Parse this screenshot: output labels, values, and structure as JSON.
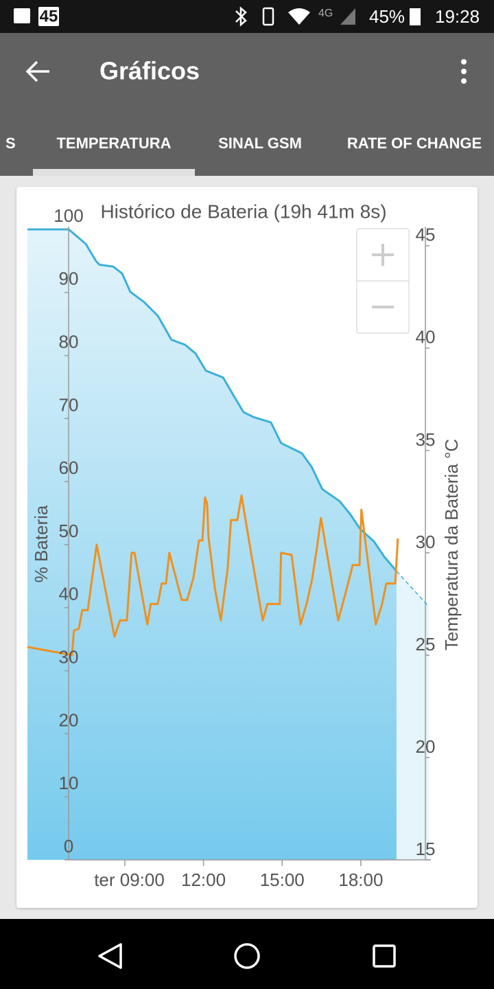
{
  "status_bar": {
    "notification": "45",
    "network": "4G",
    "battery": "45%",
    "time": "19:28"
  },
  "app_bar": {
    "title": "Gráficos"
  },
  "tabs": {
    "items": [
      "S",
      "TEMPERATURA",
      "SINAL GSM",
      "RATE OF CHANGE"
    ],
    "selected": 1
  },
  "chart_data": {
    "type": "line",
    "title": "Histórico de Bateria (19h 41m 8s)",
    "ylabel": "% Bateria",
    "y2label": "Temperatura da Bateria °C",
    "xlim": [
      5.29,
      20.67
    ],
    "xticks": [
      {
        "value": 9,
        "label": "ter 09:00"
      },
      {
        "value": 12,
        "label": "12:00"
      },
      {
        "value": 15,
        "label": "15:00"
      },
      {
        "value": 18,
        "label": "18:00"
      }
    ],
    "ylim": [
      0,
      100
    ],
    "yticks": [
      0,
      10,
      20,
      30,
      40,
      50,
      60,
      70,
      80,
      90,
      100
    ],
    "y2lim": [
      15,
      45.8
    ],
    "y2ticks": [
      15,
      20,
      25,
      30,
      35,
      40,
      45
    ],
    "series": [
      {
        "color": "#3bb0d8",
        "area": true,
        "x": [
          5.29,
          6.86,
          7.06,
          7.51,
          7.9,
          8.03,
          8.56,
          8.9,
          9.21,
          9.73,
          10.26,
          10.78,
          11.3,
          11.7,
          12.09,
          12.75,
          13.14,
          13.53,
          13.93,
          14.57,
          14.96,
          15.75,
          16.13,
          16.53,
          17.19,
          17.58,
          17.97,
          18.5,
          18.89,
          19.36
        ],
        "values": [
          100,
          100,
          99.3,
          97.7,
          95,
          94.4,
          94.1,
          93,
          90.1,
          88.5,
          86.3,
          82.5,
          81.7,
          80.3,
          77.6,
          76.5,
          73.7,
          71,
          70.2,
          69.4,
          66.1,
          64.5,
          62.3,
          58.8,
          56.9,
          54.9,
          52.5,
          50.5,
          48.1,
          45.8
        ]
      },
      {
        "color": "#3bb0d8",
        "area": true,
        "dashed": true,
        "x": [
          19.36,
          20.59
        ],
        "values": [
          45.8,
          40.2
        ]
      },
      {
        "color": "#f0901e",
        "axis": "y2",
        "x": [
          5.29,
          6.99,
          7.06,
          7.25,
          7.38,
          7.59,
          7.93,
          8.61,
          8.82,
          9.08,
          9.26,
          9.37,
          9.86,
          9.99,
          10.26,
          10.41,
          10.57,
          10.7,
          11.17,
          11.38,
          11.62,
          11.83,
          11.96,
          12.06,
          12.14,
          12.19,
          12.43,
          12.66,
          12.92,
          13.05,
          13.29,
          13.45,
          13.84,
          14.26,
          14.44,
          14.91,
          14.96,
          15.36,
          15.7,
          15.93,
          16.14,
          16.32,
          16.48,
          17.14,
          17.45,
          17.69,
          17.95,
          18.02,
          18.57,
          18.81,
          18.97,
          19.31,
          19.41
        ],
        "values": [
          25.4,
          25.0,
          26.2,
          26.3,
          27.2,
          27.2,
          30.4,
          25.9,
          26.7,
          26.7,
          30.0,
          30.0,
          26.5,
          27.5,
          27.5,
          28.5,
          28.5,
          30.0,
          27.7,
          27.7,
          28.8,
          30.6,
          30.6,
          32.7,
          32.4,
          30.8,
          28.3,
          26.7,
          29.2,
          31.6,
          31.6,
          32.8,
          29.8,
          26.7,
          27.5,
          27.5,
          30.0,
          29.9,
          26.5,
          27.5,
          28.7,
          30.2,
          31.7,
          26.7,
          28.2,
          29.4,
          29.4,
          32.1,
          26.5,
          27.5,
          28.5,
          28.5,
          30.7
        ]
      }
    ]
  }
}
